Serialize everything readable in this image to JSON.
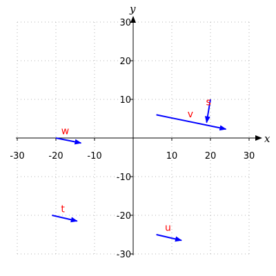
{
  "chart_data": {
    "type": "vector-field",
    "title": "",
    "xlabel": "x",
    "ylabel": "y",
    "xlim": [
      -30,
      30
    ],
    "ylim": [
      -30,
      30
    ],
    "xticks": [
      -30,
      -20,
      -10,
      10,
      20,
      30
    ],
    "yticks": [
      -30,
      -20,
      -10,
      10,
      20,
      30
    ],
    "grid": true,
    "vector_color": "#0000ff",
    "label_color": "#ff0000",
    "vectors": [
      {
        "name": "s",
        "x0": 20,
        "y0": 10,
        "x1": 19,
        "y1": 4
      },
      {
        "name": "v",
        "x0": 6,
        "y0": 6,
        "x1": 24,
        "y1": 2.3
      },
      {
        "name": "w",
        "x0": -20,
        "y0": 0,
        "x1": -13.5,
        "y1": -1.3
      },
      {
        "name": "t",
        "x0": -21,
        "y0": -20,
        "x1": -14.5,
        "y1": -21.5
      },
      {
        "name": "u",
        "x0": 6,
        "y0": -25,
        "x1": 12.5,
        "y1": -26.5
      }
    ],
    "label_positions": {
      "s": {
        "x": 19.5,
        "y": 8.5
      },
      "v": {
        "x": 14.8,
        "y": 5.4
      },
      "w": {
        "x": -17.6,
        "y": 1
      },
      "t": {
        "x": -18.2,
        "y": -19.2
      },
      "u": {
        "x": 9,
        "y": -24
      }
    }
  }
}
